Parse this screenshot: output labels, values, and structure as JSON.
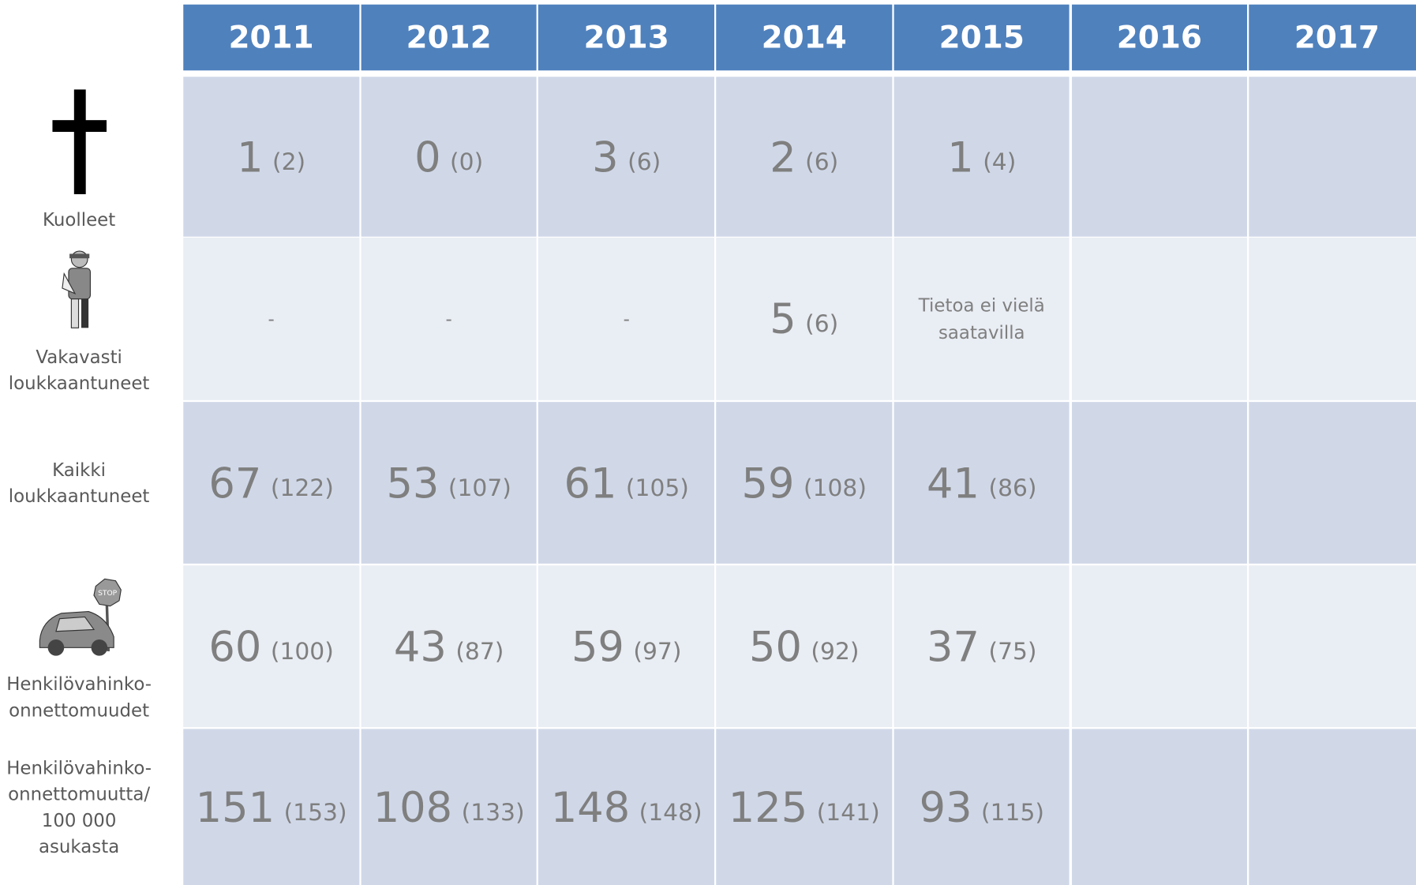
{
  "table": {
    "columns": [
      "2011",
      "2012",
      "2013",
      "2014",
      "2015",
      "2016",
      "2017"
    ],
    "rows": [
      {
        "label": [
          "Kuolleet"
        ],
        "icon": "cross",
        "cells": [
          {
            "value": 1,
            "note": "(2)"
          },
          {
            "value": 0,
            "note": "(0)"
          },
          {
            "value": 3,
            "note": "(6)"
          },
          {
            "value": 2,
            "note": "(6)"
          },
          {
            "value": 1,
            "note": "(4)"
          },
          null,
          null
        ]
      },
      {
        "label": [
          "Vakavasti",
          "loukkaantuneet"
        ],
        "icon": "person",
        "cells": [
          {
            "text": "-"
          },
          {
            "text": "-"
          },
          {
            "text": "-"
          },
          {
            "value": 5,
            "note": "(6)"
          },
          {
            "text": "Tietoa ei vielä saatavilla"
          },
          null,
          null
        ]
      },
      {
        "label": [
          "Kaikki",
          "loukkaantuneet"
        ],
        "cells": [
          {
            "value": 67,
            "note": "(122)"
          },
          {
            "value": 53,
            "note": "(107)"
          },
          {
            "value": 61,
            "note": "(105)"
          },
          {
            "value": 59,
            "note": "(108)"
          },
          {
            "value": 41,
            "note": "(86)"
          },
          null,
          null
        ]
      },
      {
        "label": [
          "Henkilövahinko-",
          "onnettomuudet"
        ],
        "icon": "car",
        "cells": [
          {
            "value": 60,
            "note": "(100)"
          },
          {
            "value": 43,
            "note": "(87)"
          },
          {
            "value": 59,
            "note": "(97)"
          },
          {
            "value": 50,
            "note": "(92)"
          },
          {
            "value": 37,
            "note": "(75)"
          },
          null,
          null
        ]
      },
      {
        "label": [
          "Henkilövahinko-",
          "onnettomuutta/",
          "100 000 asukasta"
        ],
        "cells": [
          {
            "value": 151,
            "note": "(153)"
          },
          {
            "value": 108,
            "note": "(133)"
          },
          {
            "value": 148,
            "note": "(148)"
          },
          {
            "value": 125,
            "note": "(141)"
          },
          {
            "value": 93,
            "note": "(115)"
          },
          null,
          null
        ]
      }
    ]
  }
}
